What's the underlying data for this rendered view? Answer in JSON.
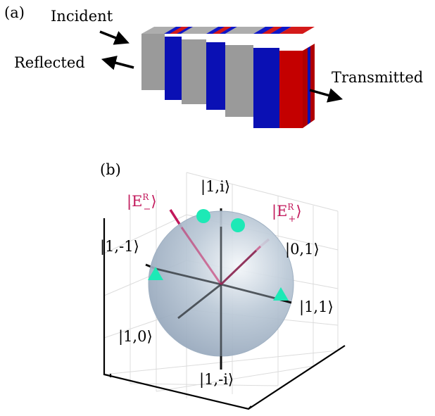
{
  "panel_a": {
    "label": "(a)",
    "incident": "Incident",
    "reflected": "Reflected",
    "transmitted": "Transmitted",
    "colors": {
      "gray": "#9a9a9a",
      "blue": "#0a10b4",
      "red": "#c40000"
    }
  },
  "panel_b": {
    "label": "(b)",
    "states": {
      "one_i": "|1,i⟩",
      "one_minus_one": "|1,-1⟩",
      "zero_one": "|0,1⟩",
      "one_one": "|1,1⟩",
      "one_zero": "|1,0⟩",
      "one_minus_i": "|1,-i⟩"
    },
    "e_minus": {
      "open": "|E",
      "sup": "R",
      "sub": "−",
      "close": "⟩"
    },
    "e_plus": {
      "open": "|E",
      "sup": "R",
      "sub": "+",
      "close": "⟩"
    },
    "colors": {
      "accent": "#c2185b",
      "marker": "#1de9b6",
      "sphere": "#a9b9c9"
    }
  }
}
